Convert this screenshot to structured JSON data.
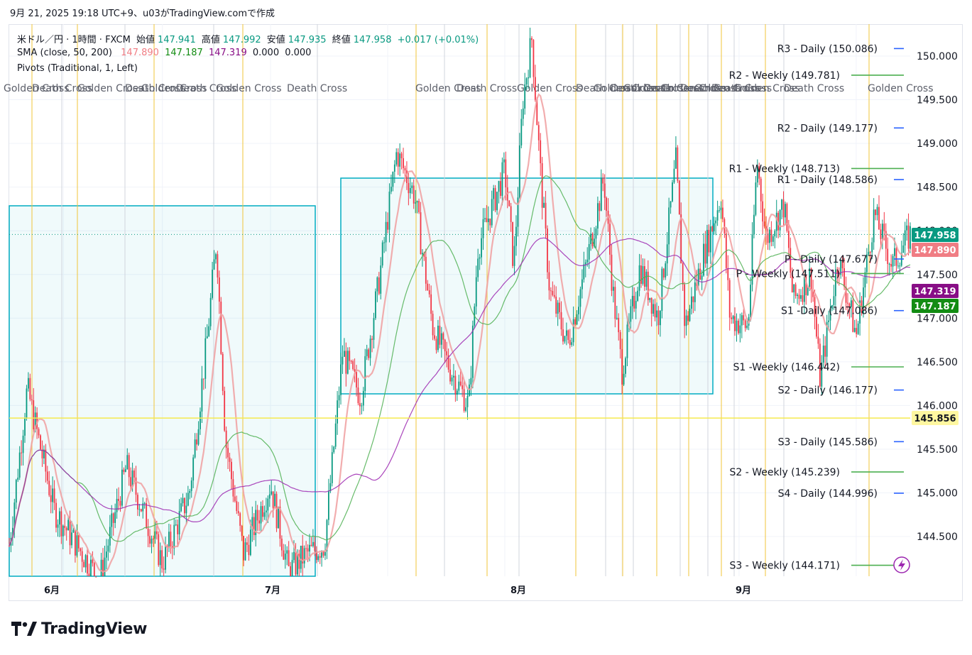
{
  "header": {
    "caption": "9月 21, 2025 19:18 UTC+9、u03がTradingView.comで作成"
  },
  "legend": {
    "symbol": "米ドル／円 · 1時間 · FXCM",
    "ohlc": [
      {
        "label": "始値",
        "value": "147.941"
      },
      {
        "label": "高値",
        "value": "147.992"
      },
      {
        "label": "安値",
        "value": "147.935"
      },
      {
        "label": "終値",
        "value": "147.958"
      }
    ],
    "change": "+0.017 (+0.01%)",
    "sma_label": "SMA (close, 50, 200)",
    "sma_values": [
      "147.890",
      "147.187",
      "147.319",
      "0.000",
      "0.000"
    ],
    "pivots_label": "Pivots (Traditional, 1, Left)"
  },
  "colors": {
    "up": "#089981",
    "down": "#f23645",
    "sma_fast": "#f09fa0",
    "sma_mid": "#4caf50",
    "sma_slow": "#9c27b0",
    "vline": "#f0c43a",
    "box": "#00acc1",
    "pivot_daily": "#2962ff",
    "pivot_weekly": "#4caf50"
  },
  "chart_data": {
    "type": "candlestick",
    "y_axis": {
      "min": 144.1,
      "max": 150.2,
      "ticks": [
        "144.500",
        "145.000",
        "145.500",
        "146.000",
        "146.500",
        "147.000",
        "147.500",
        "148.000",
        "148.500",
        "149.000",
        "149.500",
        "150.000"
      ]
    },
    "x_axis": {
      "ticks": [
        "6月",
        "7月",
        "8月",
        "9月"
      ]
    },
    "price_labels": [
      {
        "value": 147.958,
        "text": "147.958",
        "color": "#089981"
      },
      {
        "value": 147.89,
        "text": "147.890",
        "color": "#f07d84"
      },
      {
        "value": 147.319,
        "text": "147.319",
        "color": "#880e86"
      },
      {
        "value": 147.187,
        "text": "147.187",
        "color": "#138c13"
      },
      {
        "value": 145.856,
        "text": "145.856",
        "color": "#fff7a0"
      }
    ],
    "horizontal_line": 145.856,
    "last_price": 147.958,
    "cross_labels": [
      "Golden Cross",
      "Death Cross",
      "Golden Cross",
      "Death Cross",
      "Golden Cross",
      "Death Cross",
      "Golden Cross",
      "Death Cross",
      "Golden Cross",
      "Death Cross",
      "Golden Cross",
      "Death Cross",
      "Golden Cross",
      "Death Cross",
      "Golden Cross",
      "Death Cross",
      "Golden Cross",
      "Death Cross",
      "Golden Cross",
      "Death Cross",
      "Golden Cross",
      "Death Cross",
      "Golden Cross"
    ],
    "pivots": [
      {
        "label": "R3 - Daily (150.086)",
        "value": 150.086,
        "kind": "daily"
      },
      {
        "label": "R2 - Weekly (149.781)",
        "value": 149.781,
        "kind": "weekly"
      },
      {
        "label": "R2 - Daily (149.177)",
        "value": 149.177,
        "kind": "daily"
      },
      {
        "label": "R1 - Weekly (148.713)",
        "value": 148.713,
        "kind": "weekly"
      },
      {
        "label": "R1 - Daily (148.586)",
        "value": 148.586,
        "kind": "daily"
      },
      {
        "label": "P - Daily (147.677)",
        "value": 147.677,
        "kind": "daily"
      },
      {
        "label": "P - Weekly (147.511)",
        "value": 147.511,
        "kind": "weekly"
      },
      {
        "label": "S1 -Daily (147.086)",
        "value": 147.086,
        "kind": "daily"
      },
      {
        "label": "S1 -Weekly (146.442)",
        "value": 146.442,
        "kind": "weekly"
      },
      {
        "label": "S2 - Daily (146.177)",
        "value": 146.177,
        "kind": "daily"
      },
      {
        "label": "S3 - Daily (145.586)",
        "value": 145.586,
        "kind": "daily"
      },
      {
        "label": "S2 - Weekly (145.239)",
        "value": 145.239,
        "kind": "weekly"
      },
      {
        "label": "S4 - Daily (144.996)",
        "value": 144.996,
        "kind": "daily"
      },
      {
        "label": "S3 - Weekly (144.171)",
        "value": 144.171,
        "kind": "weekly"
      }
    ],
    "path_keypoints": [
      [
        0.0,
        144.4
      ],
      [
        0.02,
        146.2
      ],
      [
        0.05,
        144.8
      ],
      [
        0.1,
        144.0
      ],
      [
        0.13,
        145.3
      ],
      [
        0.17,
        144.2
      ],
      [
        0.2,
        145.0
      ],
      [
        0.22,
        146.8
      ],
      [
        0.23,
        147.9
      ],
      [
        0.24,
        145.6
      ],
      [
        0.26,
        144.3
      ],
      [
        0.29,
        145.1
      ],
      [
        0.31,
        144.1
      ],
      [
        0.33,
        144.3
      ],
      [
        0.35,
        144.4
      ],
      [
        0.37,
        146.6
      ],
      [
        0.39,
        146.1
      ],
      [
        0.41,
        147.4
      ],
      [
        0.43,
        148.9
      ],
      [
        0.45,
        148.4
      ],
      [
        0.47,
        146.9
      ],
      [
        0.49,
        146.4
      ],
      [
        0.51,
        146.0
      ],
      [
        0.52,
        147.8
      ],
      [
        0.55,
        148.7
      ],
      [
        0.56,
        147.6
      ],
      [
        0.57,
        149.5
      ],
      [
        0.58,
        150.2
      ],
      [
        0.59,
        148.6
      ],
      [
        0.6,
        147.3
      ],
      [
        0.62,
        146.7
      ],
      [
        0.64,
        147.6
      ],
      [
        0.66,
        148.6
      ],
      [
        0.67,
        147.3
      ],
      [
        0.68,
        146.4
      ],
      [
        0.7,
        147.6
      ],
      [
        0.72,
        147.0
      ],
      [
        0.74,
        148.8
      ],
      [
        0.75,
        146.9
      ],
      [
        0.77,
        147.7
      ],
      [
        0.79,
        148.4
      ],
      [
        0.8,
        147.0
      ],
      [
        0.82,
        146.9
      ],
      [
        0.83,
        148.8
      ],
      [
        0.84,
        147.9
      ],
      [
        0.86,
        148.3
      ],
      [
        0.87,
        147.2
      ],
      [
        0.89,
        147.5
      ],
      [
        0.9,
        146.3
      ],
      [
        0.92,
        147.7
      ],
      [
        0.94,
        146.8
      ],
      [
        0.96,
        148.2
      ],
      [
        0.98,
        147.6
      ],
      [
        1.0,
        147.96
      ]
    ],
    "series": [
      {
        "name": "SMA 50",
        "color": "#f09fa0"
      },
      {
        "name": "SMA 200",
        "color": "#4caf50"
      },
      {
        "name": "SMA slow",
        "color": "#9c27b0"
      }
    ]
  }
}
